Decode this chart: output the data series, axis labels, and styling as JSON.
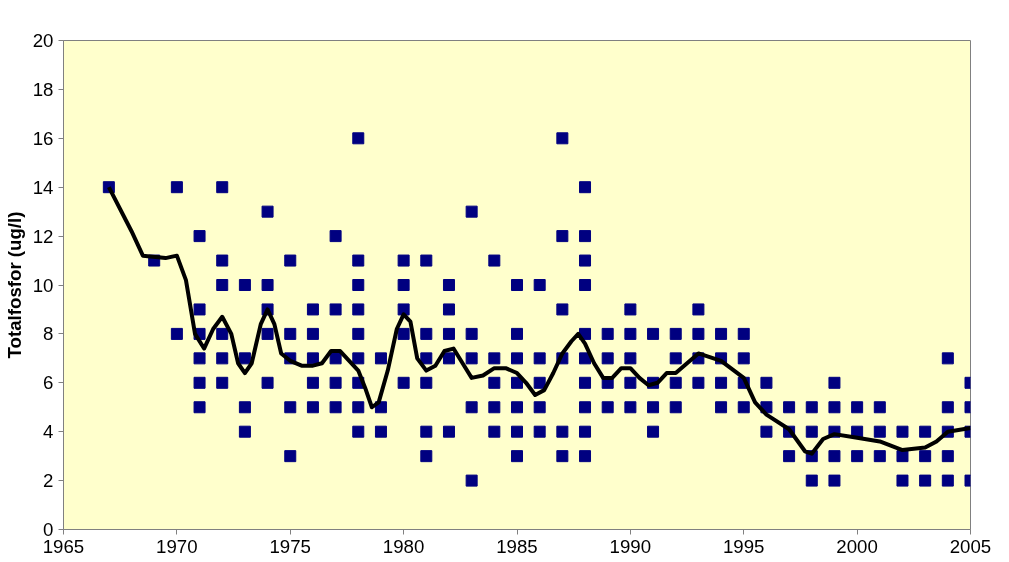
{
  "chart_data": {
    "type": "scatter",
    "ylabel": "Totalfosfor (ug/l)",
    "xlim": [
      1965,
      2005
    ],
    "xticks": [
      1965,
      1970,
      1975,
      1980,
      1985,
      1990,
      1995,
      2000,
      2005
    ],
    "ylim": [
      0,
      20
    ],
    "yticks": [
      0,
      2,
      4,
      6,
      8,
      10,
      12,
      14,
      16,
      18,
      20
    ],
    "grid": false,
    "marker": "square",
    "series": [
      {
        "color": "#000080",
        "x": [
          1967,
          1969,
          1970,
          1970,
          1971,
          1971,
          1971,
          1971,
          1971,
          1971,
          1972,
          1972,
          1972,
          1972,
          1972,
          1972,
          1973,
          1973,
          1973,
          1973,
          1974,
          1974,
          1974,
          1974,
          1974,
          1975,
          1975,
          1975,
          1975,
          1975,
          1976,
          1976,
          1976,
          1976,
          1976,
          1977,
          1977,
          1977,
          1977,
          1977,
          1978,
          1978,
          1978,
          1978,
          1978,
          1978,
          1978,
          1978,
          1978,
          1979,
          1979,
          1979,
          1980,
          1980,
          1980,
          1980,
          1980,
          1981,
          1981,
          1981,
          1981,
          1981,
          1981,
          1982,
          1982,
          1982,
          1982,
          1982,
          1983,
          1983,
          1983,
          1983,
          1983,
          1984,
          1984,
          1984,
          1984,
          1984,
          1985,
          1985,
          1985,
          1985,
          1985,
          1985,
          1985,
          1986,
          1986,
          1986,
          1986,
          1986,
          1987,
          1987,
          1987,
          1987,
          1987,
          1987,
          1988,
          1988,
          1988,
          1988,
          1988,
          1988,
          1988,
          1988,
          1988,
          1988,
          1989,
          1989,
          1989,
          1989,
          1990,
          1990,
          1990,
          1990,
          1990,
          1991,
          1991,
          1991,
          1991,
          1992,
          1992,
          1992,
          1992,
          1993,
          1993,
          1993,
          1993,
          1994,
          1994,
          1994,
          1994,
          1995,
          1995,
          1995,
          1995,
          1996,
          1996,
          1996,
          1997,
          1997,
          1997,
          1998,
          1998,
          1998,
          1998,
          1999,
          1999,
          1999,
          1999,
          1999,
          2000,
          2000,
          2000,
          2001,
          2001,
          2001,
          2002,
          2002,
          2002,
          2003,
          2003,
          2003,
          2004,
          2004,
          2004,
          2004,
          2004,
          2005,
          2005,
          2005,
          2005
        ],
        "values": [
          14,
          11,
          14,
          8,
          12,
          9,
          8,
          7,
          6,
          5,
          14,
          11,
          10,
          8,
          7,
          6,
          10,
          7,
          5,
          4,
          13,
          10,
          9,
          8,
          6,
          11,
          8,
          7,
          5,
          3,
          9,
          8,
          7,
          6,
          5,
          12,
          9,
          7,
          6,
          5,
          16,
          11,
          10,
          9,
          8,
          7,
          6,
          5,
          4,
          7,
          5,
          4,
          11,
          10,
          9,
          8,
          6,
          11,
          8,
          7,
          6,
          4,
          3,
          10,
          9,
          8,
          7,
          4,
          13,
          8,
          7,
          5,
          2,
          11,
          7,
          6,
          5,
          4,
          10,
          8,
          7,
          6,
          5,
          4,
          3,
          10,
          7,
          6,
          5,
          4,
          16,
          12,
          9,
          7,
          4,
          3,
          14,
          12,
          11,
          10,
          8,
          7,
          6,
          5,
          4,
          3,
          8,
          7,
          6,
          5,
          9,
          8,
          7,
          6,
          5,
          8,
          6,
          5,
          4,
          8,
          7,
          6,
          5,
          9,
          8,
          7,
          6,
          8,
          7,
          6,
          5,
          8,
          7,
          6,
          5,
          6,
          5,
          4,
          5,
          4,
          3,
          5,
          4,
          3,
          2,
          6,
          5,
          4,
          3,
          2,
          5,
          4,
          3,
          5,
          4,
          3,
          4,
          3,
          2,
          4,
          3,
          2,
          7,
          5,
          4,
          3,
          2,
          6,
          5,
          4,
          2
        ]
      },
      {
        "type": "line",
        "color": "#000000",
        "marker": "none",
        "line_style": "solid",
        "x": [
          1967,
          1968,
          1968.5,
          1969.5,
          1970,
          1970.4,
          1970.8,
          1971.2,
          1971.6,
          1972,
          1972.4,
          1972.7,
          1973,
          1973.3,
          1973.7,
          1974,
          1974.3,
          1974.6,
          1975,
          1975.5,
          1976,
          1976.4,
          1976.8,
          1977.2,
          1977.6,
          1978,
          1978.3,
          1978.6,
          1978.9,
          1979.3,
          1979.7,
          1980,
          1980.3,
          1980.6,
          1981,
          1981.4,
          1981.8,
          1982.2,
          1982.6,
          1983,
          1983.5,
          1984,
          1984.5,
          1985,
          1985.4,
          1985.8,
          1986.2,
          1986.6,
          1987,
          1987.4,
          1987.7,
          1988,
          1988.4,
          1988.8,
          1989.2,
          1989.6,
          1990,
          1990.4,
          1990.8,
          1991.2,
          1991.6,
          1992,
          1993,
          1994,
          1995,
          1995.5,
          1996,
          1997,
          1997.7,
          1998,
          1998.5,
          1999,
          2000,
          2001,
          2002,
          2003,
          2003.5,
          2004,
          2005
        ],
        "values": [
          14,
          12.2,
          11.2,
          11.1,
          11.2,
          10.2,
          8,
          7.4,
          8.2,
          8.7,
          8,
          6.8,
          6.4,
          6.8,
          8.4,
          9,
          8.4,
          7.2,
          6.9,
          6.7,
          6.7,
          6.8,
          7.3,
          7.3,
          6.9,
          6.5,
          5.8,
          5,
          5.2,
          6.5,
          8.2,
          8.8,
          8.5,
          7,
          6.5,
          6.7,
          7.3,
          7.4,
          6.8,
          6.2,
          6.3,
          6.6,
          6.6,
          6.4,
          6,
          5.5,
          5.7,
          6.4,
          7.2,
          7.7,
          8,
          7.6,
          6.8,
          6.2,
          6.2,
          6.6,
          6.6,
          6.2,
          5.9,
          6,
          6.4,
          6.4,
          7.2,
          6.9,
          6.2,
          5.2,
          4.7,
          4.1,
          3.2,
          3.1,
          3.7,
          3.9,
          3.75,
          3.6,
          3.25,
          3.35,
          3.6,
          4,
          4.15
        ]
      }
    ]
  }
}
